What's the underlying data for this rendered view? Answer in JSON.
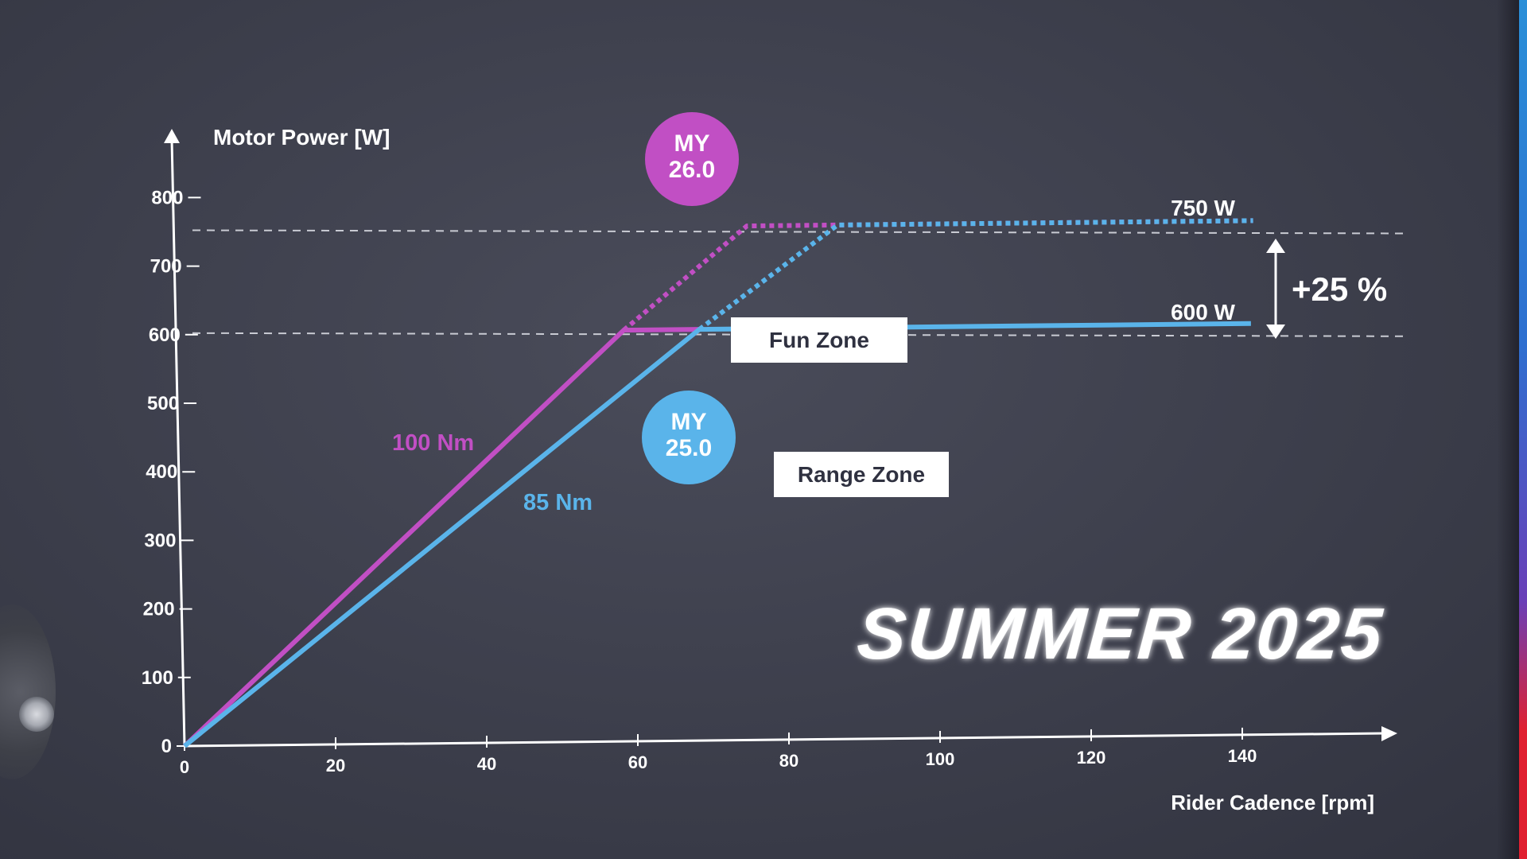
{
  "colors": {
    "background": "#3c3e4b",
    "axis": "#ffffff",
    "grid_dashed": "#c9cbd3",
    "my26": "#c14fc4",
    "my25": "#5ab4ea",
    "label_box_bg": "#ffffff",
    "label_box_text": "#2f3140"
  },
  "chart_data": {
    "type": "line",
    "ylabel": "Motor Power [W]",
    "xlabel": "Rider Cadence [rpm]",
    "xlim": [
      0,
      155
    ],
    "ylim": [
      0,
      860
    ],
    "x_ticks": [
      0,
      20,
      40,
      60,
      80,
      100,
      120,
      140
    ],
    "y_ticks": [
      0,
      100,
      200,
      300,
      400,
      500,
      600,
      700,
      800
    ],
    "reference_lines": [
      {
        "value": 750,
        "style": "dashed",
        "label": "750 W"
      },
      {
        "value": 600,
        "style": "dashed",
        "label": "600 W"
      }
    ],
    "series": [
      {
        "name": "100 Nm",
        "color": "#c14fc4",
        "segments": [
          {
            "style": "solid",
            "points": [
              [
                0,
                0
              ],
              [
                57,
                600
              ],
              [
                67,
                600
              ]
            ]
          },
          {
            "style": "dotted",
            "points": [
              [
                57,
                600
              ],
              [
                73,
                750
              ],
              [
                140,
                750
              ]
            ]
          }
        ]
      },
      {
        "name": "85 Nm",
        "color": "#5ab4ea",
        "segments": [
          {
            "style": "solid",
            "points": [
              [
                0,
                0
              ],
              [
                67,
                600
              ],
              [
                140,
                600
              ]
            ]
          },
          {
            "style": "dotted",
            "points": [
              [
                67,
                600
              ],
              [
                85,
                750
              ],
              [
                140,
                750
              ]
            ]
          }
        ]
      }
    ],
    "annotations": {
      "increase": "+25 %",
      "badge_my26_line1": "MY",
      "badge_my26_line2": "26.0",
      "badge_my25_line1": "MY",
      "badge_my25_line2": "25.0",
      "fun_zone": "Fun Zone",
      "range_zone": "Range Zone"
    },
    "grid": false,
    "legend": "none"
  },
  "headline": "SUMMER 2025"
}
